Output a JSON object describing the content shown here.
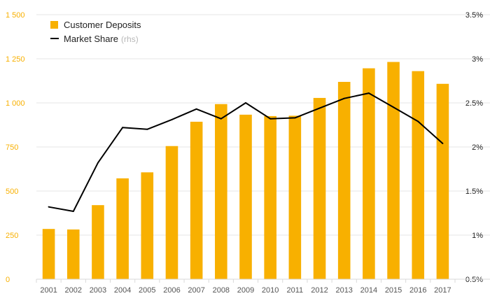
{
  "chart_data": {
    "type": "bar",
    "categories": [
      "2001",
      "2002",
      "2003",
      "2004",
      "2005",
      "2006",
      "2007",
      "2008",
      "2009",
      "2010",
      "2011",
      "2012",
      "2013",
      "2014",
      "2015",
      "2016",
      "2017"
    ],
    "series": [
      {
        "name": "Customer Deposits",
        "type": "bar",
        "axis": "left",
        "color": "#f8b000",
        "values": [
          285,
          282,
          420,
          572,
          606,
          755,
          893,
          993,
          933,
          925,
          927,
          1028,
          1119,
          1196,
          1232,
          1180,
          1108
        ]
      },
      {
        "name": "Market Share",
        "name_suffix": "(rhs)",
        "type": "line",
        "axis": "right",
        "color": "#000000",
        "values": [
          1.32,
          1.27,
          1.82,
          2.22,
          2.2,
          2.31,
          2.43,
          2.32,
          2.5,
          2.32,
          2.33,
          2.44,
          2.55,
          2.61,
          2.45,
          2.29,
          2.04
        ]
      }
    ],
    "y_left": {
      "min": 0,
      "max": 1500,
      "ticks": [
        0,
        250,
        500,
        750,
        1000,
        1250,
        1500
      ],
      "tick_labels": [
        "0",
        "250",
        "500",
        "750",
        "1 000",
        "1 250",
        "1 500"
      ],
      "color": "#f8b000"
    },
    "y_right": {
      "min": 0.5,
      "max": 3.5,
      "ticks": [
        0.5,
        1,
        1.5,
        2,
        2.5,
        3,
        3.5
      ],
      "tick_labels": [
        "0.5%",
        "1%",
        "1.5%",
        "2%",
        "2.5%",
        "3%",
        "3.5%"
      ]
    },
    "grid": true,
    "legend_position": "top-left",
    "title": "",
    "xlabel": "",
    "ylabel": ""
  }
}
